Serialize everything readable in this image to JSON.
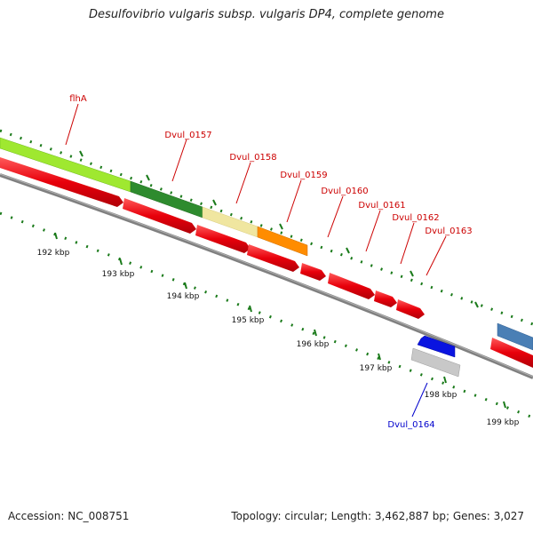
{
  "title": "Desulfovibrio vulgaris subsp. vulgaris DP4, complete genome",
  "footer": {
    "accession": "Accession: NC_008751",
    "summary": "Topology: circular; Length: 3,462,887 bp; Genes: 3,027"
  },
  "ticks": [
    "192 kbp",
    "193 kbp",
    "194 kbp",
    "195 kbp",
    "196 kbp",
    "197 kbp",
    "198 kbp",
    "199 kbp"
  ],
  "colors": {
    "backbone": "#808080",
    "gene_red": "#e8000b",
    "tick_green": "#1a7a1a",
    "label_red": "#cc0000",
    "label_blue": "#0000cc",
    "blue_gene": "#0a14e0",
    "steel_blue": "#4a7fb5"
  },
  "gene_labels": [
    "flhA",
    "Dvul_0157",
    "Dvul_0158",
    "Dvul_0159",
    "Dvul_0160",
    "Dvul_0161",
    "Dvul_0162",
    "Dvul_0163",
    "Dvul_0164"
  ],
  "feature_bands": [
    {
      "name": "band-lime",
      "color": "#9fe830"
    },
    {
      "name": "band-dark-green",
      "color": "#2e8b2e"
    },
    {
      "name": "band-pale-yellow",
      "color": "#f0e6a0"
    },
    {
      "name": "band-orange",
      "color": "#ff8c00"
    },
    {
      "name": "band-steel-blue",
      "color": "#4a7fb5"
    },
    {
      "name": "band-light-gray",
      "color": "#c8c8c8"
    }
  ]
}
